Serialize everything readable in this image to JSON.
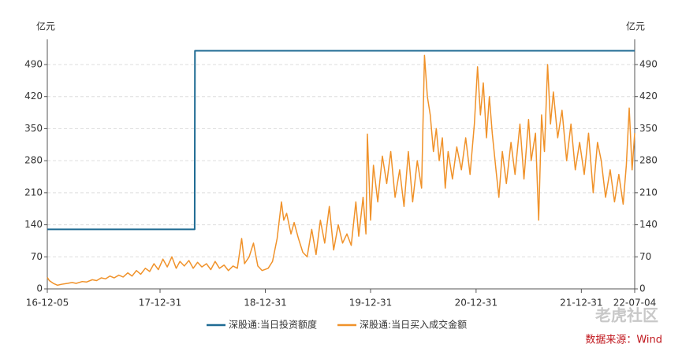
{
  "chart_data": {
    "type": "line",
    "ylabel": "亿元",
    "y2label": "亿元",
    "xlim": [
      "16-12-05",
      "22-07-04"
    ],
    "xticks": [
      "16-12-05",
      "17-12-31",
      "18-12-31",
      "19-12-31",
      "20-12-31",
      "21-12-31",
      "22-07-04"
    ],
    "ylim": [
      0,
      545
    ],
    "yticks": [
      0,
      70,
      140,
      210,
      280,
      350,
      420,
      490
    ],
    "y2lim": [
      0,
      545
    ],
    "y2ticks": [
      0,
      70,
      140,
      210,
      280,
      350,
      420,
      490
    ],
    "grid": true,
    "legend": "bottom",
    "series": [
      {
        "name": "深股通:当日投资额度",
        "color": "#1f6b93",
        "x": [
          "16-12-05",
          "18-04-30",
          "18-05-01",
          "22-07-04"
        ],
        "values": [
          130,
          130,
          520,
          520
        ]
      },
      {
        "name": "深股通:当日买入成交金额",
        "color": "#f0922a",
        "x": [
          "16-12-05",
          "16-12-12",
          "16-12-26",
          "17-01-09",
          "17-01-23",
          "17-02-13",
          "17-03-01",
          "17-03-15",
          "17-04-05",
          "17-04-20",
          "17-05-10",
          "17-05-25",
          "17-06-10",
          "17-06-25",
          "17-07-10",
          "17-07-25",
          "17-08-10",
          "17-08-25",
          "17-09-10",
          "17-09-25",
          "17-10-10",
          "17-10-25",
          "17-11-10",
          "17-11-25",
          "17-12-10",
          "17-12-25",
          "18-01-10",
          "18-01-25",
          "18-02-10",
          "18-02-25",
          "18-03-10",
          "18-03-25",
          "18-04-10",
          "18-04-25",
          "18-05-10",
          "18-05-25",
          "18-06-10",
          "18-06-25",
          "18-07-10",
          "18-07-25",
          "18-08-10",
          "18-08-25",
          "18-09-10",
          "18-09-25",
          "18-10-10",
          "18-10-20",
          "18-11-05",
          "18-11-20",
          "18-12-05",
          "18-12-20",
          "19-01-10",
          "19-01-25",
          "19-02-10",
          "19-02-25",
          "19-03-05",
          "19-03-15",
          "19-03-30",
          "19-04-10",
          "19-04-25",
          "19-05-10",
          "19-05-25",
          "19-06-10",
          "19-06-25",
          "19-07-10",
          "19-07-25",
          "19-08-10",
          "19-08-25",
          "19-09-10",
          "19-09-25",
          "19-10-10",
          "19-10-25",
          "19-11-10",
          "19-11-20",
          "19-12-05",
          "19-12-15",
          "19-12-20",
          "19-12-31",
          "20-01-10",
          "20-01-25",
          "20-02-10",
          "20-02-25",
          "20-03-10",
          "20-03-25",
          "20-04-10",
          "20-04-25",
          "20-05-10",
          "20-05-25",
          "20-06-10",
          "20-06-25",
          "20-07-05",
          "20-07-15",
          "20-07-25",
          "20-08-05",
          "20-08-15",
          "20-08-25",
          "20-09-05",
          "20-09-15",
          "20-09-25",
          "20-10-10",
          "20-10-25",
          "20-11-10",
          "20-11-25",
          "20-12-10",
          "20-12-25",
          "21-01-05",
          "21-01-15",
          "21-01-25",
          "21-02-05",
          "21-02-15",
          "21-02-25",
          "21-03-10",
          "21-03-20",
          "21-04-01",
          "21-04-15",
          "21-05-01",
          "21-05-15",
          "21-06-01",
          "21-06-15",
          "21-07-01",
          "21-07-10",
          "21-07-25",
          "21-08-05",
          "21-08-15",
          "21-08-25",
          "21-09-05",
          "21-09-15",
          "21-09-25",
          "21-10-10",
          "21-10-25",
          "21-11-10",
          "21-11-25",
          "21-12-10",
          "21-12-25",
          "22-01-10",
          "22-01-25",
          "22-02-10",
          "22-02-25",
          "22-03-10",
          "22-03-25",
          "22-04-10",
          "22-04-25",
          "22-05-10",
          "22-05-25",
          "22-06-05",
          "22-06-15",
          "22-06-25",
          "22-07-04"
        ],
        "values": [
          25,
          18,
          12,
          8,
          10,
          12,
          14,
          12,
          16,
          15,
          20,
          18,
          24,
          22,
          28,
          24,
          30,
          26,
          35,
          28,
          40,
          32,
          45,
          38,
          55,
          42,
          65,
          48,
          70,
          45,
          60,
          50,
          62,
          45,
          58,
          48,
          55,
          42,
          60,
          45,
          52,
          40,
          50,
          45,
          110,
          55,
          70,
          100,
          50,
          40,
          45,
          60,
          110,
          190,
          150,
          165,
          120,
          145,
          110,
          80,
          70,
          130,
          75,
          150,
          100,
          180,
          85,
          140,
          100,
          120,
          95,
          190,
          115,
          200,
          120,
          338,
          150,
          270,
          190,
          290,
          230,
          300,
          200,
          260,
          180,
          300,
          190,
          280,
          220,
          510,
          420,
          380,
          300,
          350,
          280,
          330,
          220,
          300,
          240,
          310,
          260,
          330,
          250,
          360,
          485,
          380,
          450,
          330,
          420,
          340,
          260,
          200,
          300,
          230,
          320,
          250,
          360,
          240,
          370,
          280,
          340,
          150,
          380,
          300,
          490,
          360,
          430,
          330,
          390,
          280,
          360,
          260,
          320,
          250,
          340,
          210,
          320,
          280,
          200,
          260,
          190,
          250,
          185,
          270,
          395,
          260,
          340
        ]
      }
    ],
    "watermark": "老虎社区",
    "source": "数据来源：Wind"
  }
}
